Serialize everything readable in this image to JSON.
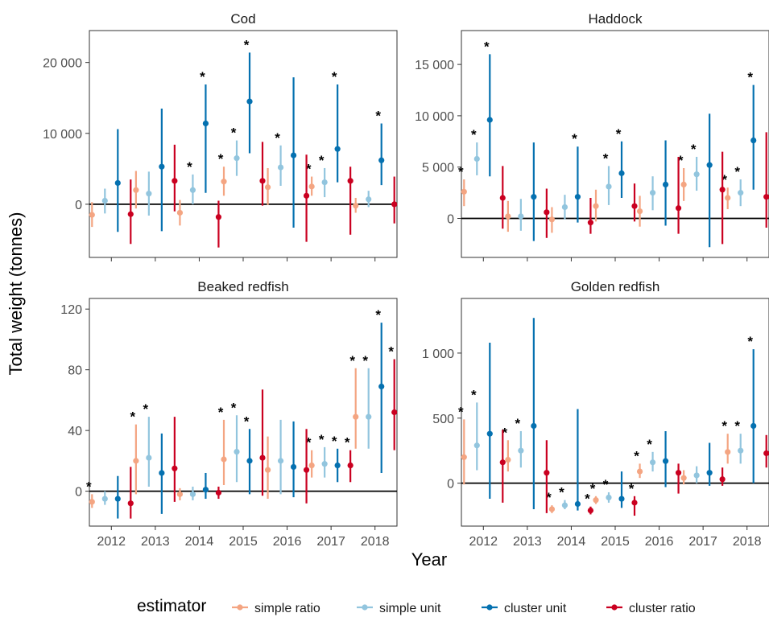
{
  "chart_data": {
    "type": "pointrange",
    "xlabel": "Year",
    "ylabel": "Total weight (tonnes)",
    "years": [
      "2012",
      "2013",
      "2014",
      "2015",
      "2016",
      "2017",
      "2018"
    ],
    "legend": {
      "title": "estimator",
      "position": "bottom",
      "entries": [
        {
          "name": "simple ratio",
          "color": "#f4a582"
        },
        {
          "name": "simple unit",
          "color": "#92c5de"
        },
        {
          "name": "cluster unit",
          "color": "#0571b0"
        },
        {
          "name": "cluster ratio",
          "color": "#ca0020"
        }
      ]
    },
    "panels": [
      {
        "title": "Cod",
        "ylim": [
          -7500,
          24500
        ],
        "yticks": [
          0,
          10000,
          20000
        ],
        "ytick_labels": [
          "0",
          "10 000",
          "20 000"
        ],
        "series": [
          {
            "name": "simple ratio",
            "points": [
              {
                "y": -1500,
                "lo": -3200,
                "hi": 300,
                "sig": false
              },
              {
                "y": 2000,
                "lo": -600,
                "hi": 4700,
                "sig": false
              },
              {
                "y": -1200,
                "lo": -3000,
                "hi": 600,
                "sig": false
              },
              {
                "y": 3200,
                "lo": 1200,
                "hi": 5300,
                "sig": true
              },
              {
                "y": 2400,
                "lo": -100,
                "hi": 5100,
                "sig": false
              },
              {
                "y": 2500,
                "lo": 1200,
                "hi": 3900,
                "sig": true
              },
              {
                "y": -200,
                "lo": -1200,
                "hi": 900,
                "sig": false
              }
            ]
          },
          {
            "name": "simple unit",
            "points": [
              {
                "y": 500,
                "lo": -1300,
                "hi": 2200,
                "sig": false
              },
              {
                "y": 1500,
                "lo": -1600,
                "hi": 4600,
                "sig": false
              },
              {
                "y": 2000,
                "lo": 0,
                "hi": 4200,
                "sig": true
              },
              {
                "y": 6500,
                "lo": 4000,
                "hi": 9000,
                "sig": true
              },
              {
                "y": 5200,
                "lo": 2600,
                "hi": 8300,
                "sig": true
              },
              {
                "y": 3100,
                "lo": 1000,
                "hi": 5100,
                "sig": true
              },
              {
                "y": 700,
                "lo": -400,
                "hi": 1900,
                "sig": false
              }
            ]
          },
          {
            "name": "cluster unit",
            "points": [
              {
                "y": 3000,
                "lo": -3900,
                "hi": 10600,
                "sig": false
              },
              {
                "y": 5300,
                "lo": -3800,
                "hi": 13500,
                "sig": false
              },
              {
                "y": 11400,
                "lo": 1600,
                "hi": 16900,
                "sig": true
              },
              {
                "y": 14500,
                "lo": 7200,
                "hi": 21400,
                "sig": true
              },
              {
                "y": 6900,
                "lo": -3300,
                "hi": 17900,
                "sig": false
              },
              {
                "y": 7800,
                "lo": 3100,
                "hi": 16900,
                "sig": true
              },
              {
                "y": 6200,
                "lo": 2700,
                "hi": 11400,
                "sig": true
              }
            ]
          },
          {
            "name": "cluster ratio",
            "points": [
              {
                "y": -1400,
                "lo": -5600,
                "hi": 3500,
                "sig": false
              },
              {
                "y": 3300,
                "lo": -1000,
                "hi": 8400,
                "sig": false
              },
              {
                "y": -1800,
                "lo": -6100,
                "hi": 500,
                "sig": false
              },
              {
                "y": 3300,
                "lo": -200,
                "hi": 8800,
                "sig": false
              },
              {
                "y": 1200,
                "lo": -5300,
                "hi": 7000,
                "sig": false
              },
              {
                "y": 3300,
                "lo": -4300,
                "hi": 5300,
                "sig": false
              },
              {
                "y": 0,
                "lo": -2700,
                "hi": 3900,
                "sig": false
              }
            ]
          }
        ]
      },
      {
        "title": "Haddock",
        "ylim": [
          -3800,
          18300
        ],
        "yticks": [
          0,
          5000,
          10000,
          15000
        ],
        "ytick_labels": [
          "0",
          "5 000",
          "10 000",
          "15 000"
        ],
        "series": [
          {
            "name": "simple ratio",
            "points": [
              {
                "y": 2600,
                "lo": 1200,
                "hi": 3800,
                "sig": true
              },
              {
                "y": 200,
                "lo": -1300,
                "hi": 1700,
                "sig": false
              },
              {
                "y": -100,
                "lo": -1400,
                "hi": 1100,
                "sig": false
              },
              {
                "y": 1200,
                "lo": -300,
                "hi": 2800,
                "sig": false
              },
              {
                "y": 700,
                "lo": -800,
                "hi": 2200,
                "sig": false
              },
              {
                "y": 3300,
                "lo": 1700,
                "hi": 4900,
                "sig": true
              },
              {
                "y": 2000,
                "lo": 900,
                "hi": 3000,
                "sig": true
              }
            ]
          },
          {
            "name": "simple unit",
            "points": [
              {
                "y": 5800,
                "lo": 4200,
                "hi": 7400,
                "sig": true
              },
              {
                "y": 200,
                "lo": -1200,
                "hi": 1900,
                "sig": false
              },
              {
                "y": 1100,
                "lo": -100,
                "hi": 2300,
                "sig": false
              },
              {
                "y": 3100,
                "lo": 1300,
                "hi": 5100,
                "sig": true
              },
              {
                "y": 2500,
                "lo": 800,
                "hi": 4100,
                "sig": false
              },
              {
                "y": 4300,
                "lo": 2700,
                "hi": 6000,
                "sig": true
              },
              {
                "y": 2500,
                "lo": 1200,
                "hi": 3800,
                "sig": true
              }
            ]
          },
          {
            "name": "cluster unit",
            "points": [
              {
                "y": 9600,
                "lo": 4100,
                "hi": 16000,
                "sig": true
              },
              {
                "y": 2100,
                "lo": -2200,
                "hi": 7400,
                "sig": false
              },
              {
                "y": 2100,
                "lo": -400,
                "hi": 7000,
                "sig": true
              },
              {
                "y": 4400,
                "lo": 2000,
                "hi": 7500,
                "sig": true
              },
              {
                "y": 3300,
                "lo": -700,
                "hi": 7600,
                "sig": false
              },
              {
                "y": 5200,
                "lo": -2800,
                "hi": 10200,
                "sig": false
              },
              {
                "y": 7600,
                "lo": 2800,
                "hi": 13000,
                "sig": true
              }
            ]
          },
          {
            "name": "cluster ratio",
            "points": [
              {
                "y": 2000,
                "lo": -1000,
                "hi": 5100,
                "sig": false
              },
              {
                "y": 600,
                "lo": -1900,
                "hi": 2900,
                "sig": false
              },
              {
                "y": -400,
                "lo": -1500,
                "hi": 2000,
                "sig": false
              },
              {
                "y": 1200,
                "lo": -300,
                "hi": 3400,
                "sig": false
              },
              {
                "y": 1000,
                "lo": -1500,
                "hi": 6000,
                "sig": false
              },
              {
                "y": 2800,
                "lo": -2500,
                "hi": 6500,
                "sig": false
              },
              {
                "y": 2100,
                "lo": -900,
                "hi": 8400,
                "sig": false
              }
            ]
          }
        ]
      },
      {
        "title": "Beaked redfish",
        "ylim": [
          -23,
          127
        ],
        "yticks": [
          0,
          40,
          80,
          120
        ],
        "ytick_labels": [
          "0",
          "40",
          "80",
          "120"
        ],
        "series": [
          {
            "name": "simple ratio",
            "points": [
              {
                "y": -7,
                "lo": -11,
                "hi": -2,
                "sig": true
              },
              {
                "y": 20,
                "lo": -2,
                "hi": 44,
                "sig": true
              },
              {
                "y": -2,
                "lo": -6,
                "hi": 2,
                "sig": false
              },
              {
                "y": 21,
                "lo": 4,
                "hi": 47,
                "sig": true
              },
              {
                "y": 14,
                "lo": -5,
                "hi": 36,
                "sig": false
              },
              {
                "y": 17,
                "lo": 9,
                "hi": 27,
                "sig": true
              },
              {
                "y": 49,
                "lo": 28,
                "hi": 81,
                "sig": true
              }
            ]
          },
          {
            "name": "simple unit",
            "points": [
              {
                "y": -5,
                "lo": -9,
                "hi": 0,
                "sig": false
              },
              {
                "y": 22,
                "lo": 3,
                "hi": 49,
                "sig": true
              },
              {
                "y": -2,
                "lo": -6,
                "hi": 3,
                "sig": false
              },
              {
                "y": 26,
                "lo": 6,
                "hi": 50,
                "sig": true
              },
              {
                "y": 20,
                "lo": -2,
                "hi": 47,
                "sig": false
              },
              {
                "y": 18,
                "lo": 9,
                "hi": 29,
                "sig": true
              },
              {
                "y": 49,
                "lo": 28,
                "hi": 81,
                "sig": true
              }
            ]
          },
          {
            "name": "cluster unit",
            "points": [
              {
                "y": -5,
                "lo": -18,
                "hi": 10,
                "sig": false
              },
              {
                "y": 12,
                "lo": -15,
                "hi": 38,
                "sig": false
              },
              {
                "y": 1,
                "lo": -5,
                "hi": 12,
                "sig": false
              },
              {
                "y": 20,
                "lo": -2,
                "hi": 41,
                "sig": true
              },
              {
                "y": 16,
                "lo": -4,
                "hi": 46,
                "sig": false
              },
              {
                "y": 17,
                "lo": 6,
                "hi": 28,
                "sig": true
              },
              {
                "y": 69,
                "lo": 12,
                "hi": 111,
                "sig": true
              }
            ]
          },
          {
            "name": "cluster ratio",
            "points": [
              {
                "y": -8,
                "lo": -18,
                "hi": 16,
                "sig": false
              },
              {
                "y": 15,
                "lo": -7,
                "hi": 49,
                "sig": false
              },
              {
                "y": -1,
                "lo": -5,
                "hi": 3,
                "sig": false
              },
              {
                "y": 22,
                "lo": -3,
                "hi": 67,
                "sig": false
              },
              {
                "y": 14,
                "lo": -8,
                "hi": 41,
                "sig": false
              },
              {
                "y": 17,
                "lo": 6,
                "hi": 27,
                "sig": true
              },
              {
                "y": 52,
                "lo": 27,
                "hi": 87,
                "sig": true
              }
            ]
          }
        ]
      },
      {
        "title": "Golden redfish",
        "ylim": [
          -330,
          1420
        ],
        "yticks": [
          0,
          500,
          1000
        ],
        "ytick_labels": [
          "0",
          "500",
          "1 000"
        ],
        "series": [
          {
            "name": "simple ratio",
            "points": [
              {
                "y": 200,
                "lo": -10,
                "hi": 490,
                "sig": true
              },
              {
                "y": 180,
                "lo": 90,
                "hi": 330,
                "sig": true
              },
              {
                "y": -200,
                "lo": -230,
                "hi": -170,
                "sig": true
              },
              {
                "y": -130,
                "lo": -160,
                "hi": -100,
                "sig": true
              },
              {
                "y": 90,
                "lo": 40,
                "hi": 150,
                "sig": true
              },
              {
                "y": 40,
                "lo": -10,
                "hi": 100,
                "sig": false
              },
              {
                "y": 240,
                "lo": 150,
                "hi": 380,
                "sig": true
              }
            ]
          },
          {
            "name": "simple unit",
            "points": [
              {
                "y": 290,
                "lo": 100,
                "hi": 620,
                "sig": true
              },
              {
                "y": 250,
                "lo": 120,
                "hi": 400,
                "sig": true
              },
              {
                "y": -170,
                "lo": -200,
                "hi": -130,
                "sig": true
              },
              {
                "y": -110,
                "lo": -150,
                "hi": -70,
                "sig": true
              },
              {
                "y": 160,
                "lo": 90,
                "hi": 240,
                "sig": true
              },
              {
                "y": 60,
                "lo": 0,
                "hi": 130,
                "sig": false
              },
              {
                "y": 250,
                "lo": 150,
                "hi": 380,
                "sig": true
              }
            ]
          },
          {
            "name": "cluster unit",
            "points": [
              {
                "y": 380,
                "lo": -120,
                "hi": 1080,
                "sig": false
              },
              {
                "y": 440,
                "lo": -200,
                "hi": 1270,
                "sig": false
              },
              {
                "y": -160,
                "lo": -210,
                "hi": 570,
                "sig": false
              },
              {
                "y": -120,
                "lo": -190,
                "hi": 90,
                "sig": false
              },
              {
                "y": 170,
                "lo": -30,
                "hi": 400,
                "sig": false
              },
              {
                "y": 80,
                "lo": -20,
                "hi": 310,
                "sig": false
              },
              {
                "y": 440,
                "lo": 0,
                "hi": 1030,
                "sig": true
              }
            ]
          },
          {
            "name": "cluster ratio",
            "points": [
              {
                "y": 160,
                "lo": -150,
                "hi": 410,
                "sig": false
              },
              {
                "y": 80,
                "lo": -230,
                "hi": 330,
                "sig": false
              },
              {
                "y": -210,
                "lo": -240,
                "hi": -180,
                "sig": true
              },
              {
                "y": -150,
                "lo": -250,
                "hi": -100,
                "sig": true
              },
              {
                "y": 80,
                "lo": -80,
                "hi": 150,
                "sig": false
              },
              {
                "y": 30,
                "lo": -20,
                "hi": 120,
                "sig": false
              },
              {
                "y": 230,
                "lo": 120,
                "hi": 370,
                "sig": false
              }
            ]
          }
        ]
      }
    ]
  }
}
